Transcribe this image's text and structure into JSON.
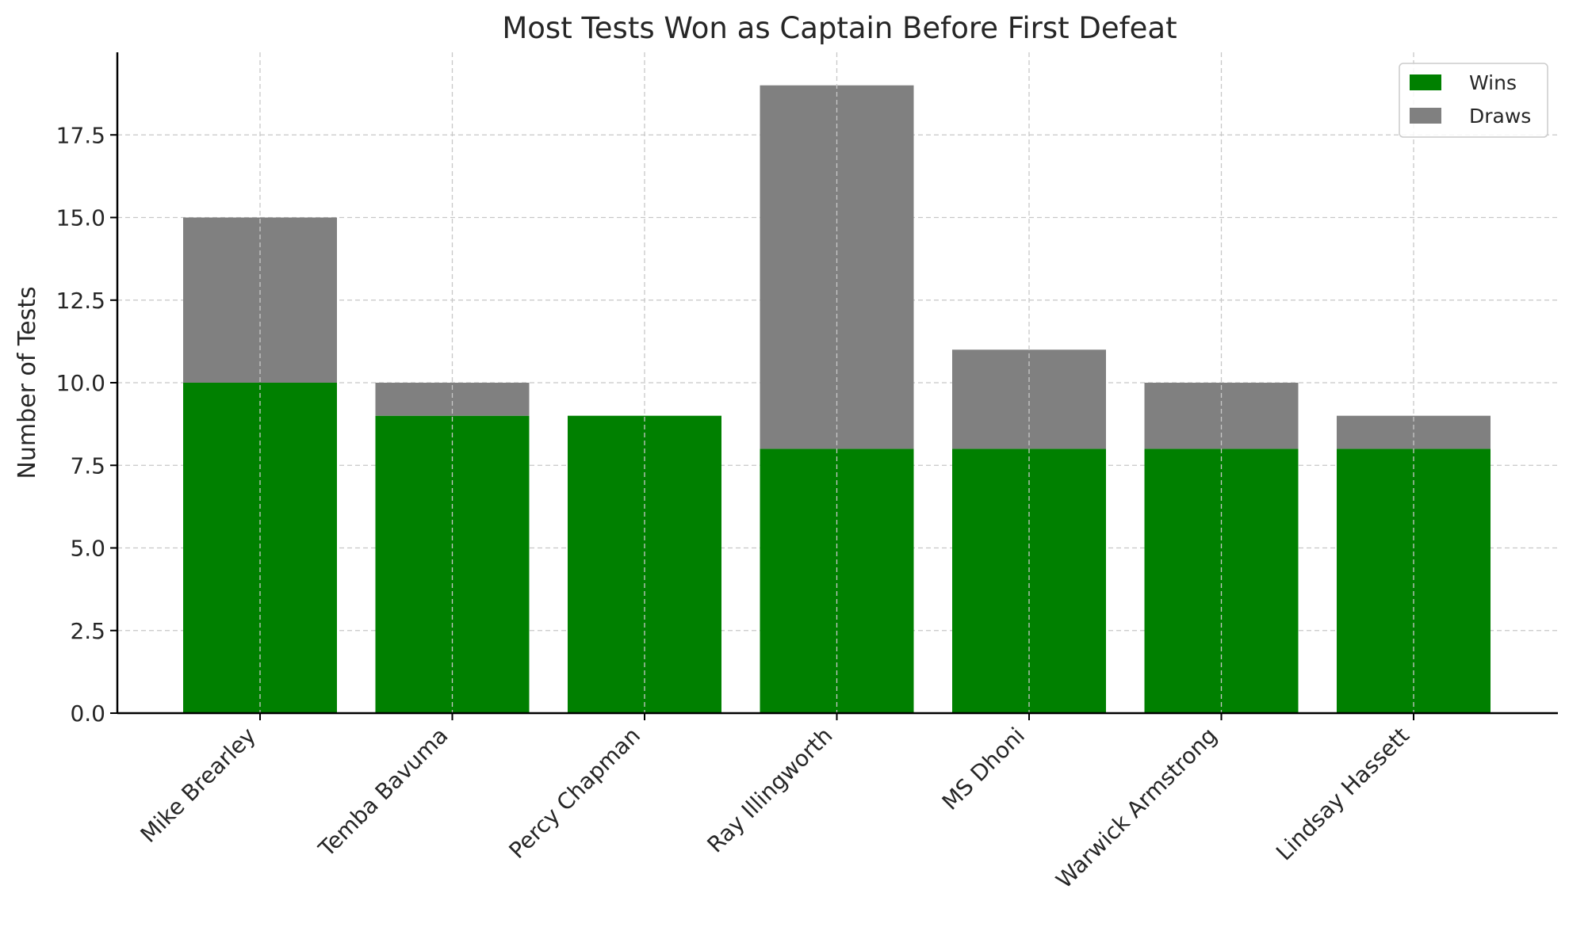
{
  "chart_data": {
    "type": "bar",
    "stacked": true,
    "title": "Most Tests Won as Captain Before First Defeat",
    "xlabel": "",
    "ylabel": "Number of Tests",
    "categories": [
      "Mike Brearley",
      "Temba Bavuma",
      "Percy Chapman",
      "Ray Illingworth",
      "MS Dhoni",
      "Warwick Armstrong",
      "Lindsay Hassett"
    ],
    "series": [
      {
        "name": "Wins",
        "color": "#008000",
        "values": [
          10,
          9,
          9,
          8,
          8,
          8,
          8
        ]
      },
      {
        "name": "Draws",
        "color": "#808080",
        "values": [
          5,
          1,
          0,
          11,
          3,
          2,
          1
        ]
      }
    ],
    "ylim": [
      0,
      20
    ],
    "yticks": [
      "0.0",
      "2.5",
      "5.0",
      "7.5",
      "10.0",
      "12.5",
      "15.0",
      "17.5"
    ],
    "grid": true,
    "legend_position": "top-right"
  }
}
